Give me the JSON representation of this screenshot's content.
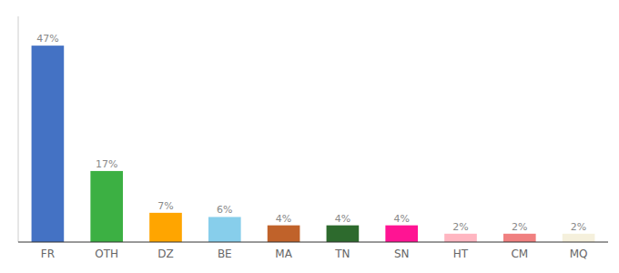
{
  "chart_data": {
    "type": "bar",
    "categories": [
      "FR",
      "OTH",
      "DZ",
      "BE",
      "MA",
      "TN",
      "SN",
      "HT",
      "CM",
      "MQ"
    ],
    "values": [
      47,
      17,
      7,
      6,
      4,
      4,
      4,
      2,
      2,
      2
    ],
    "value_labels": [
      "47%",
      "17%",
      "7%",
      "6%",
      "4%",
      "4%",
      "4%",
      "2%",
      "2%",
      "2%"
    ],
    "colors": [
      "#4472c4",
      "#3cb043",
      "#ffa500",
      "#87ceeb",
      "#c0622a",
      "#2d6a2d",
      "#ff1493",
      "#ffb6c1",
      "#f08080",
      "#f5f0dc"
    ],
    "ylim": [
      0,
      54
    ],
    "data_labels": true,
    "tick_labels": "x"
  }
}
